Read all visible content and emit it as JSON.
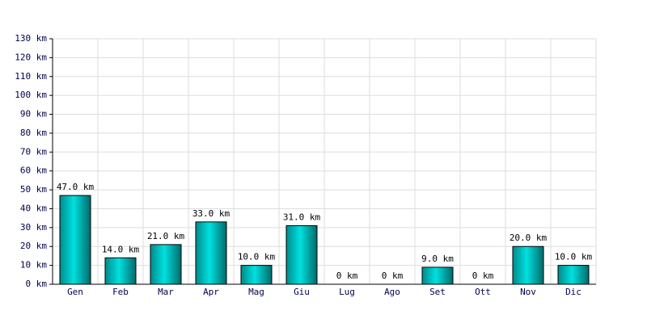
{
  "chart_data": {
    "type": "bar",
    "categories": [
      "Gen",
      "Feb",
      "Mar",
      "Apr",
      "Mag",
      "Giu",
      "Lug",
      "Ago",
      "Set",
      "Ott",
      "Nov",
      "Dic"
    ],
    "values": [
      47,
      14,
      21,
      33,
      10,
      31,
      0,
      0,
      9,
      0,
      20,
      10
    ],
    "value_labels": [
      "47.0 km",
      "14.0 km",
      "21.0 km",
      "33.0 km",
      "10.0 km",
      "31.0 km",
      "0 km",
      "0 km",
      "9.0 km",
      "0 km",
      "20.0 km",
      "10.0 km"
    ],
    "color": "#00e0e0",
    "ylim": [
      0,
      130
    ],
    "yticks": [
      {
        "value": 0,
        "label": "0 km"
      },
      {
        "value": 10,
        "label": "10 km"
      },
      {
        "value": 20,
        "label": "20 km"
      },
      {
        "value": 30,
        "label": "30 km"
      },
      {
        "value": 40,
        "label": "40 km"
      },
      {
        "value": 50,
        "label": "50 km"
      },
      {
        "value": 60,
        "label": "60 km"
      },
      {
        "value": 70,
        "label": "70 km"
      },
      {
        "value": 80,
        "label": "80 km"
      },
      {
        "value": 90,
        "label": "90 km"
      },
      {
        "value": 100,
        "label": "100 km"
      },
      {
        "value": 110,
        "label": "110 km"
      },
      {
        "value": 120,
        "label": "120 km"
      },
      {
        "value": 130,
        "label": "130 km"
      }
    ],
    "grid": true
  }
}
